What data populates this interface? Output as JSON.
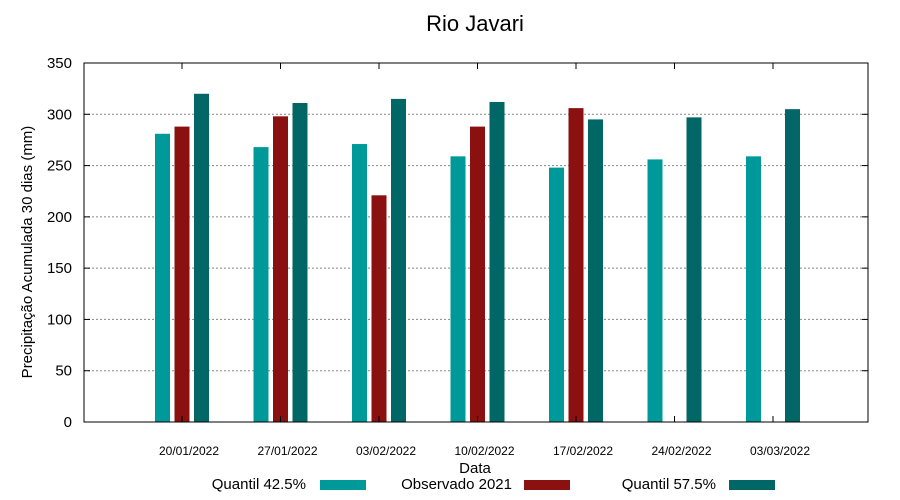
{
  "chart_data": {
    "type": "bar",
    "title": "Rio Javari",
    "xlabel": "Data",
    "ylabel": "Precipitação Acumulada 30 dias (mm)",
    "ylim": [
      0,
      350
    ],
    "yticks": [
      0,
      50,
      100,
      150,
      200,
      250,
      300,
      350
    ],
    "grid": true,
    "legend_position": "bottom",
    "categories": [
      "20/01/2022",
      "27/01/2022",
      "03/02/2022",
      "10/02/2022",
      "17/02/2022",
      "24/02/2022",
      "03/03/2022"
    ],
    "series": [
      {
        "name": "Quantil 42.5%",
        "color": "#009999",
        "values": [
          281,
          268,
          271,
          259,
          248,
          256,
          259
        ]
      },
      {
        "name": "Observado 2021",
        "color": "#8b1010",
        "values": [
          288,
          298,
          221,
          288,
          306,
          null,
          null
        ]
      },
      {
        "name": "Quantil 57.5%",
        "color": "#006666",
        "values": [
          320,
          311,
          315,
          312,
          295,
          297,
          305
        ]
      }
    ]
  }
}
